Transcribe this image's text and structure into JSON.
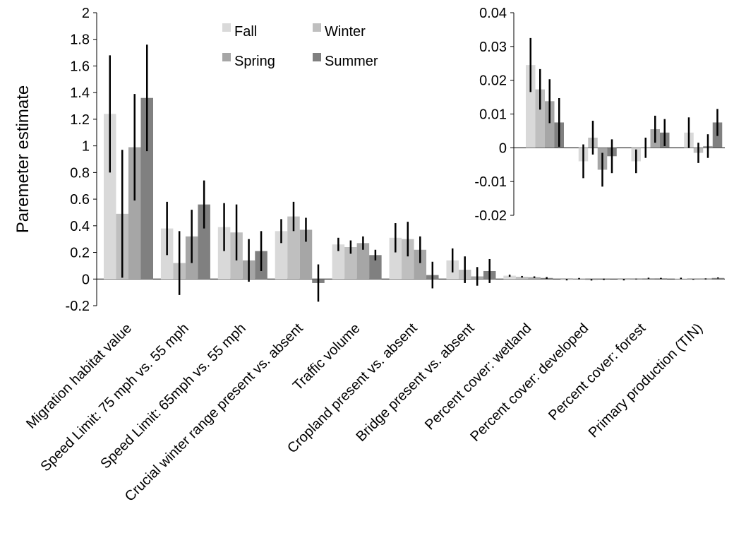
{
  "colors": {
    "series": [
      "#d9d9d9",
      "#bfbfbf",
      "#a6a6a6",
      "#808080"
    ],
    "axis": "#000000",
    "error_bar": "#000000"
  },
  "chart_data": [
    {
      "type": "bar",
      "ylabel": "Paremeter estimate",
      "ylim": [
        -0.2,
        2
      ],
      "yticks": [
        "2",
        "1.8",
        "1.6",
        "1.4",
        "1.2",
        "1",
        "0.8",
        "0.6",
        "0.4",
        "0.2",
        "0",
        "-0.2"
      ],
      "grid": false,
      "legend_position": "top-center",
      "categories": [
        "Migration habitat value",
        "Speed Limit: 75 mph vs. 55 mph",
        "Speed Limit: 65mph vs. 55 mph",
        "Crucial winter range present vs. absent",
        "Traffic volume",
        "Cropland present vs. absent",
        "Bridge present vs. absent",
        "Percent cover: wetland",
        "Percent cover: developed",
        "Percent cover: forest",
        "Primary production (TIN)"
      ],
      "series": [
        {
          "name": "Fall",
          "values": [
            1.24,
            0.38,
            0.39,
            0.36,
            0.26,
            0.31,
            0.14,
            0.025,
            -0.005,
            -0.005,
            0.005
          ],
          "error": [
            0.44,
            0.2,
            0.18,
            0.09,
            0.05,
            0.11,
            0.09,
            0.008,
            0.005,
            0.005,
            0.005
          ]
        },
        {
          "name": "Winter",
          "values": [
            0.49,
            0.12,
            0.35,
            0.47,
            0.24,
            0.3,
            0.07,
            0.017,
            0.003,
            0.0,
            -0.002
          ],
          "error": [
            0.48,
            0.24,
            0.21,
            0.11,
            0.05,
            0.13,
            0.1,
            0.006,
            0.005,
            0.003,
            0.003
          ]
        },
        {
          "name": "Spring",
          "values": [
            0.99,
            0.32,
            0.14,
            0.37,
            0.27,
            0.22,
            0.02,
            0.014,
            -0.006,
            0.006,
            0.001
          ],
          "error": [
            0.4,
            0.2,
            0.16,
            0.09,
            0.05,
            0.1,
            0.07,
            0.006,
            0.005,
            0.004,
            0.004
          ]
        },
        {
          "name": "Summer",
          "values": [
            1.36,
            0.56,
            0.21,
            -0.03,
            0.18,
            0.03,
            0.06,
            0.008,
            -0.002,
            0.005,
            0.008
          ],
          "error": [
            0.4,
            0.18,
            0.15,
            0.14,
            0.04,
            0.1,
            0.09,
            0.007,
            0.005,
            0.004,
            0.004
          ]
        }
      ]
    },
    {
      "type": "bar",
      "ylim": [
        -0.02,
        0.04
      ],
      "yticks": [
        "0.04",
        "0.03",
        "0.02",
        "0.01",
        "0",
        "-0.01",
        "-0.02"
      ],
      "grid": false,
      "categories": [
        "Percent cover: wetland",
        "Percent cover: developed",
        "Percent cover: forest",
        "Primary production (TIN)"
      ],
      "series": [
        {
          "name": "Fall",
          "values": [
            0.0245,
            -0.004,
            -0.004,
            0.0045
          ],
          "error": [
            0.008,
            0.005,
            0.0035,
            0.0045
          ]
        },
        {
          "name": "Winter",
          "values": [
            0.0173,
            0.003,
            0.0,
            -0.0015
          ],
          "error": [
            0.006,
            0.005,
            0.003,
            0.003
          ]
        },
        {
          "name": "Spring",
          "values": [
            0.0138,
            -0.0065,
            0.0055,
            0.0005
          ],
          "error": [
            0.0065,
            0.005,
            0.004,
            0.0035
          ]
        },
        {
          "name": "Summer",
          "values": [
            0.0075,
            -0.0025,
            0.0045,
            0.0075
          ],
          "error": [
            0.0072,
            0.005,
            0.004,
            0.004
          ]
        }
      ]
    }
  ]
}
